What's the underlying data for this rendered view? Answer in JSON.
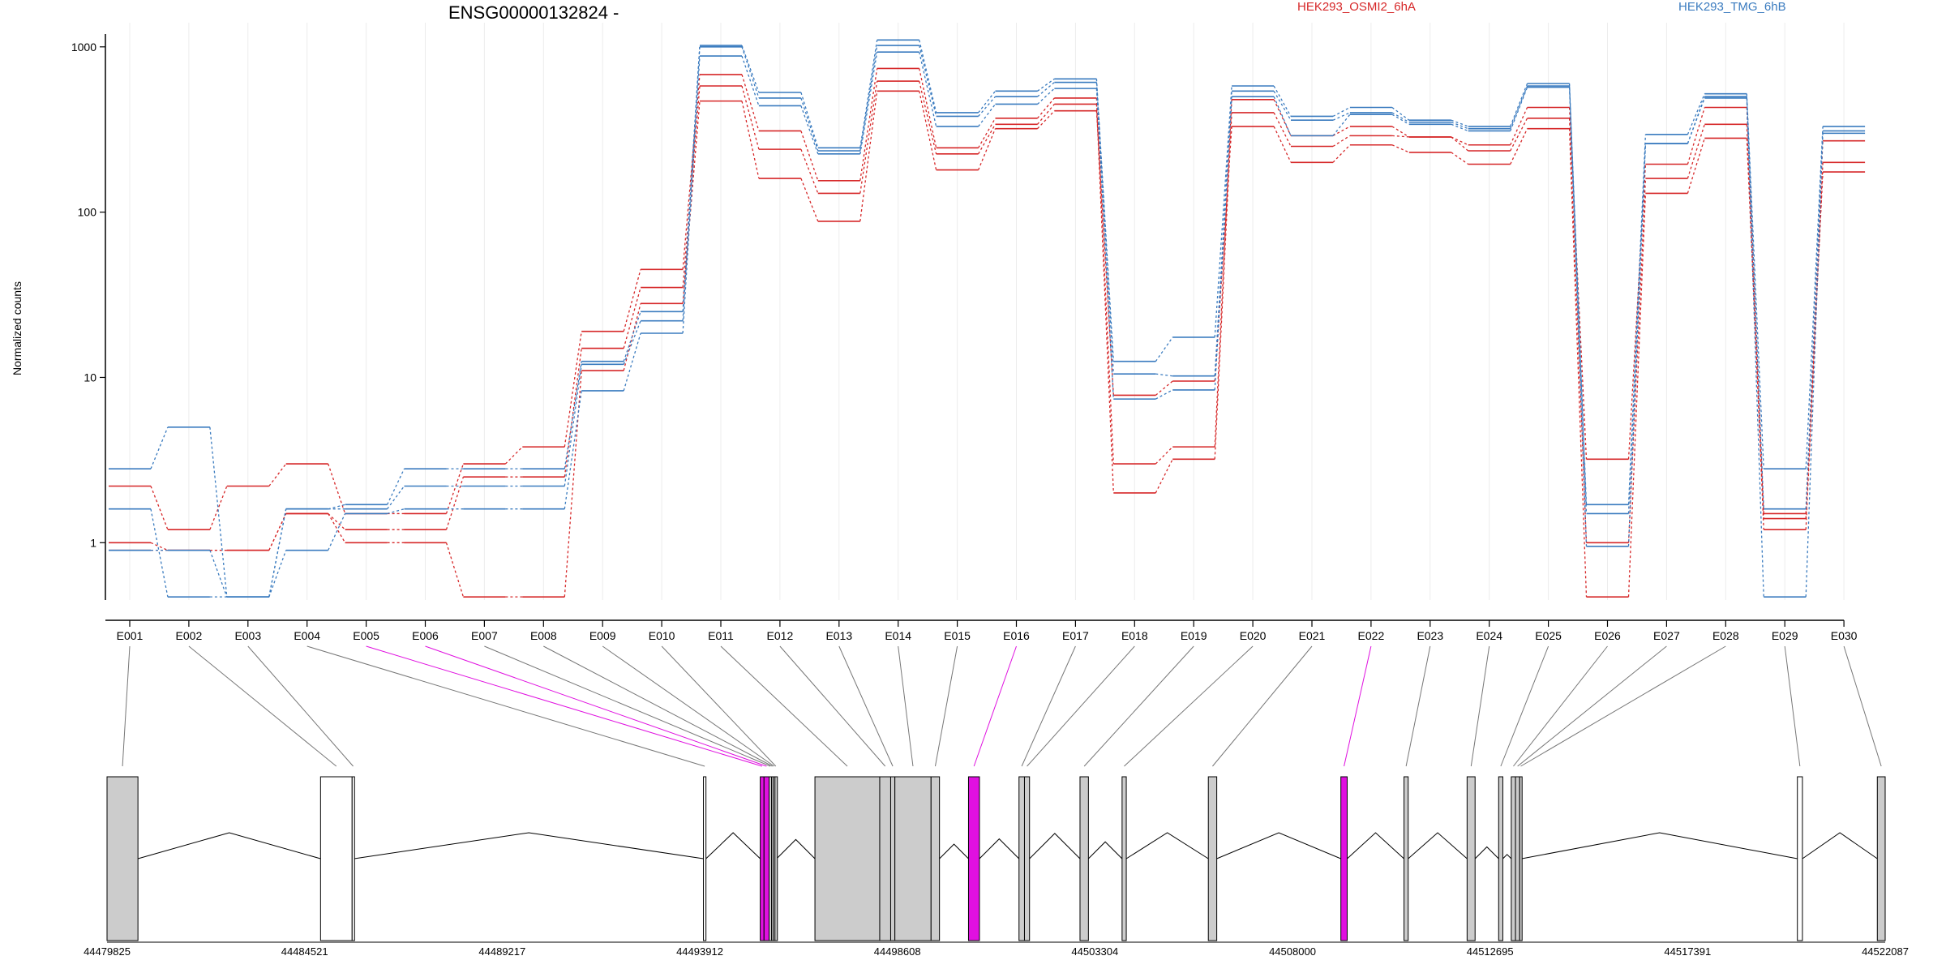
{
  "chart_data": {
    "type": "line",
    "title": "ENSG00000132824 -",
    "ylabel": "Normalized counts",
    "yscale": "log",
    "ylim": [
      0.45,
      1400
    ],
    "yticks": [
      1,
      10,
      100,
      1000
    ],
    "ytick_labels": [
      "1",
      "10",
      "100",
      "1000"
    ],
    "grid": "vertical-light",
    "legend_placement": "top-right",
    "colors": {
      "OSMI2": "#d62728",
      "TMG": "#3a7bbf",
      "highlight": "#e010e0",
      "exon_fill": "#cccccc"
    },
    "legend": [
      {
        "label": "HEK293_OSMI2_6hA",
        "color": "#d62728"
      },
      {
        "label": "HEK293_TMG_6hB",
        "color": "#3a7bbf"
      }
    ],
    "categories": [
      "E001",
      "E002",
      "E003",
      "E004",
      "E005",
      "E006",
      "E007",
      "E008",
      "E009",
      "E010",
      "E011",
      "E012",
      "E013",
      "E014",
      "E015",
      "E016",
      "E017",
      "E018",
      "E019",
      "E020",
      "E021",
      "E022",
      "E023",
      "E024",
      "E025",
      "E026",
      "E027",
      "E028",
      "E029",
      "E030"
    ],
    "series": [
      {
        "group": "OSMI2",
        "values": [
          2.2,
          1.2,
          2.2,
          3.0,
          1.5,
          1.5,
          3.0,
          3.8,
          19,
          45,
          680,
          310,
          155,
          740,
          245,
          370,
          490,
          3.0,
          3.8,
          480,
          290,
          330,
          285,
          255,
          430,
          3.2,
          195,
          430,
          1.5,
          270
        ]
      },
      {
        "group": "OSMI2",
        "values": [
          1.0,
          0.9,
          0.9,
          1.5,
          1.2,
          1.2,
          2.5,
          2.5,
          15,
          35,
          580,
          240,
          130,
          620,
          225,
          340,
          450,
          2.0,
          3.2,
          400,
          250,
          290,
          285,
          235,
          370,
          1.0,
          160,
          340,
          1.2,
          200
        ]
      },
      {
        "group": "OSMI2",
        "values": [
          0.9,
          0.9,
          0.9,
          1.5,
          1.0,
          1.0,
          0.47,
          0.47,
          11,
          28,
          470,
          160,
          88,
          540,
          180,
          320,
          410,
          7.8,
          9.5,
          330,
          200,
          255,
          230,
          195,
          320,
          0.47,
          130,
          280,
          1.4,
          175
        ]
      },
      {
        "group": "TMG",
        "values": [
          2.8,
          5.0,
          0.47,
          1.6,
          1.7,
          2.8,
          2.8,
          2.8,
          12.5,
          25,
          1020,
          530,
          245,
          1100,
          400,
          540,
          640,
          12.5,
          17.5,
          580,
          380,
          430,
          360,
          330,
          600,
          1.7,
          295,
          520,
          2.8,
          330
        ]
      },
      {
        "group": "TMG",
        "values": [
          1.6,
          0.47,
          0.47,
          1.6,
          1.6,
          2.2,
          2.2,
          2.2,
          12,
          22,
          1000,
          490,
          235,
          1020,
          380,
          500,
          610,
          10.5,
          10.2,
          540,
          360,
          400,
          350,
          320,
          580,
          1.5,
          260,
          500,
          1.6,
          310
        ]
      },
      {
        "group": "TMG",
        "values": [
          0.9,
          0.9,
          0.47,
          0.9,
          1.5,
          1.6,
          1.6,
          1.6,
          8.3,
          18.5,
          880,
          440,
          225,
          930,
          330,
          450,
          560,
          7.4,
          8.4,
          500,
          290,
          390,
          340,
          310,
          570,
          0.95,
          260,
          490,
          0.47,
          300
        ]
      }
    ],
    "genomic_axis": {
      "tick_labels": [
        "44479825",
        "44484521",
        "44489217",
        "44493912",
        "44498608",
        "44503304",
        "44508000",
        "44512695",
        "44517391",
        "44522087"
      ],
      "range": [
        44479825,
        44522087
      ]
    },
    "exons": [
      {
        "id": "E001",
        "start": 44479825,
        "end": 44480560,
        "fill": "gray"
      },
      {
        "id": "E002",
        "start": 44484900,
        "end": 44485650,
        "fill": "white"
      },
      {
        "id": "E003",
        "start": 44485650,
        "end": 44485700,
        "fill": "white"
      },
      {
        "id": "E004",
        "start": 44494000,
        "end": 44494060,
        "fill": "white"
      },
      {
        "id": "E005",
        "start": 44495350,
        "end": 44495440,
        "fill": "highlight"
      },
      {
        "id": "E006",
        "start": 44495440,
        "end": 44495560,
        "fill": "highlight"
      },
      {
        "id": "E007",
        "start": 44495560,
        "end": 44495620,
        "fill": "gray"
      },
      {
        "id": "E008",
        "start": 44495620,
        "end": 44495660,
        "fill": "gray"
      },
      {
        "id": "E009",
        "start": 44495660,
        "end": 44495700,
        "fill": "gray"
      },
      {
        "id": "E010",
        "start": 44495700,
        "end": 44495740,
        "fill": "gray"
      },
      {
        "id": "E011",
        "start": 44496650,
        "end": 44498190,
        "fill": "gray"
      },
      {
        "id": "E012",
        "start": 44498190,
        "end": 44498450,
        "fill": "gray"
      },
      {
        "id": "E013",
        "start": 44498450,
        "end": 44498550,
        "fill": "gray"
      },
      {
        "id": "E014",
        "start": 44498550,
        "end": 44499410,
        "fill": "gray"
      },
      {
        "id": "E015",
        "start": 44499410,
        "end": 44499610,
        "fill": "gray"
      },
      {
        "id": "E016",
        "start": 44500300,
        "end": 44500560,
        "fill": "highlight"
      },
      {
        "id": "E017",
        "start": 44501500,
        "end": 44501630,
        "fill": "gray"
      },
      {
        "id": "E018",
        "start": 44501630,
        "end": 44501750,
        "fill": "gray"
      },
      {
        "id": "E019",
        "start": 44502950,
        "end": 44503150,
        "fill": "gray"
      },
      {
        "id": "E020",
        "start": 44503950,
        "end": 44504050,
        "fill": "gray"
      },
      {
        "id": "E021",
        "start": 44506000,
        "end": 44506200,
        "fill": "gray"
      },
      {
        "id": "E022",
        "start": 44509150,
        "end": 44509300,
        "fill": "highlight"
      },
      {
        "id": "E023",
        "start": 44510650,
        "end": 44510750,
        "fill": "gray"
      },
      {
        "id": "E024",
        "start": 44512150,
        "end": 44512340,
        "fill": "gray"
      },
      {
        "id": "E025",
        "start": 44512900,
        "end": 44513000,
        "fill": "gray"
      },
      {
        "id": "E026",
        "start": 44513200,
        "end": 44513300,
        "fill": "gray"
      },
      {
        "id": "E027",
        "start": 44513300,
        "end": 44513400,
        "fill": "gray"
      },
      {
        "id": "E028",
        "start": 44513400,
        "end": 44513450,
        "fill": "gray"
      },
      {
        "id": "E029",
        "start": 44520000,
        "end": 44520120,
        "fill": "white"
      },
      {
        "id": "E030",
        "start": 44521900,
        "end": 44522087,
        "fill": "gray"
      }
    ]
  }
}
